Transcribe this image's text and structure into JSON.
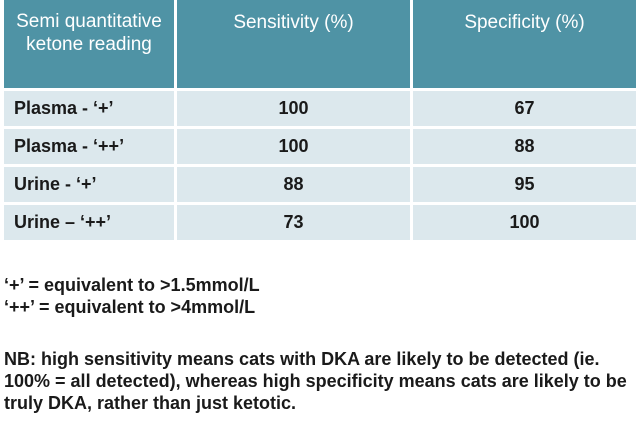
{
  "table": {
    "headers": [
      "Semi quantitative ketone reading",
      "Sensitivity (%)",
      "Specificity (%)"
    ],
    "rows": [
      {
        "reading": "Plasma - ‘+’",
        "sensitivity": "100",
        "specificity": "67"
      },
      {
        "reading": "Plasma - ‘++’",
        "sensitivity": "100",
        "specificity": "88"
      },
      {
        "reading": "Urine - ‘+’",
        "sensitivity": "88",
        "specificity": "95"
      },
      {
        "reading": "Urine – ‘++’",
        "sensitivity": "73",
        "specificity": "100"
      }
    ]
  },
  "legend": [
    "‘+’ = equivalent to >1.5mmol/L",
    "‘++’ = equivalent to >4mmol/L"
  ],
  "note": "NB: high sensitivity means cats with DKA are likely to be detected (ie. 100% = all detected), whereas high specificity means cats are likely to be truly DKA, rather than just ketotic.",
  "colors": {
    "header_bg": "#4f93a5",
    "row_bg": "#dce8ed"
  }
}
